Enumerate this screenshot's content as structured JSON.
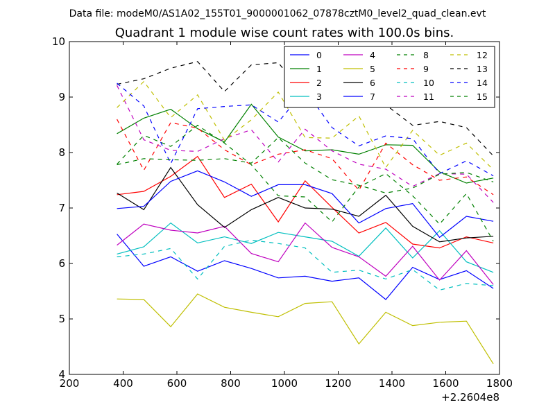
{
  "figure": {
    "suptitle": "Data file: modeM0/AS1A02_155T01_9000001062_07878cztM0_level2_quad_clean.evt",
    "title": "Quadrant 1 module wise count rates with 100.0s bins.",
    "x_offset_label": "+2.2604e8"
  },
  "chart_data": {
    "type": "line",
    "title": "Quadrant 1 module wise count rates with 100.0s bins.",
    "xlabel": "",
    "ylabel": "",
    "x_offset": "+2.2604e8",
    "xlim": [
      200,
      1800
    ],
    "ylim": [
      4,
      10
    ],
    "xticks": [
      200,
      400,
      600,
      800,
      1000,
      1200,
      1400,
      1600,
      1800
    ],
    "yticks": [
      4,
      5,
      6,
      7,
      8,
      9,
      10
    ],
    "xtick_labels": [
      "200",
      "400",
      "600",
      "800",
      "1000",
      "1200",
      "1400",
      "1600",
      "1800"
    ],
    "ytick_labels": [
      "4",
      "5",
      "6",
      "7",
      "8",
      "9",
      "10"
    ],
    "grid": false,
    "legend_position": "top-right",
    "x": [
      377,
      477,
      577,
      677,
      777,
      877,
      977,
      1077,
      1177,
      1277,
      1377,
      1477,
      1577,
      1677,
      1777
    ],
    "series": [
      {
        "name": "0",
        "color": "#0000ff",
        "dash": "solid",
        "values": [
          6.53,
          5.95,
          6.12,
          5.86,
          6.05,
          5.91,
          5.74,
          5.77,
          5.68,
          5.74,
          5.35,
          5.93,
          5.71,
          5.87,
          5.55
        ]
      },
      {
        "name": "1",
        "color": "#008000",
        "dash": "solid",
        "values": [
          8.34,
          8.62,
          8.78,
          8.43,
          8.19,
          8.87,
          8.28,
          8.03,
          8.05,
          7.97,
          8.14,
          8.13,
          7.65,
          7.45,
          7.54
        ]
      },
      {
        "name": "2",
        "color": "#ff0000",
        "dash": "solid",
        "values": [
          7.24,
          7.3,
          7.57,
          7.93,
          7.19,
          7.43,
          6.75,
          7.49,
          7.01,
          6.55,
          6.74,
          6.35,
          6.28,
          6.48,
          6.37
        ]
      },
      {
        "name": "3",
        "color": "#00bfbf",
        "dash": "solid",
        "values": [
          6.17,
          6.3,
          6.73,
          6.37,
          6.48,
          6.36,
          6.56,
          6.48,
          6.4,
          6.13,
          6.64,
          6.1,
          6.59,
          6.03,
          5.84
        ]
      },
      {
        "name": "4",
        "color": "#bf00bf",
        "dash": "solid",
        "values": [
          6.33,
          6.71,
          6.6,
          6.55,
          6.67,
          6.18,
          6.03,
          6.73,
          6.29,
          6.12,
          5.77,
          6.31,
          5.7,
          6.23,
          5.62
        ]
      },
      {
        "name": "5",
        "color": "#bfbf00",
        "dash": "solid",
        "values": [
          5.36,
          5.35,
          4.86,
          5.45,
          5.21,
          5.12,
          5.04,
          5.28,
          5.31,
          4.55,
          5.12,
          4.88,
          4.94,
          4.96,
          4.19
        ]
      },
      {
        "name": "6",
        "color": "#000000",
        "dash": "solid",
        "values": [
          7.27,
          6.97,
          7.73,
          7.06,
          6.65,
          6.97,
          7.19,
          7.0,
          6.98,
          6.85,
          7.23,
          6.67,
          6.39,
          6.46,
          6.49
        ]
      },
      {
        "name": "7",
        "color": "#0000ff",
        "dash": "solid",
        "values": [
          6.99,
          7.03,
          7.48,
          7.67,
          7.47,
          7.21,
          7.42,
          7.42,
          7.26,
          6.73,
          6.99,
          7.08,
          6.47,
          6.85,
          6.76
        ]
      },
      {
        "name": "8",
        "color": "#008000",
        "dash": "dashed",
        "values": [
          7.79,
          8.31,
          8.11,
          8.49,
          8.17,
          7.78,
          7.22,
          7.2,
          6.75,
          7.38,
          7.62,
          7.22,
          6.71,
          7.26,
          6.4
        ]
      },
      {
        "name": "9",
        "color": "#ff0000",
        "dash": "dashed",
        "values": [
          8.6,
          7.68,
          8.54,
          8.44,
          8.05,
          7.78,
          7.97,
          8.05,
          7.89,
          7.32,
          8.17,
          7.78,
          7.5,
          7.56,
          7.24
        ]
      },
      {
        "name": "10",
        "color": "#00bfbf",
        "dash": "dashed",
        "values": [
          6.12,
          6.17,
          6.27,
          5.72,
          6.31,
          6.42,
          6.36,
          6.28,
          5.84,
          5.88,
          5.72,
          5.89,
          5.52,
          5.64,
          5.6
        ]
      },
      {
        "name": "11",
        "color": "#bf00bf",
        "dash": "dashed",
        "values": [
          9.21,
          8.23,
          8.04,
          8.02,
          8.25,
          8.41,
          7.83,
          8.42,
          8.03,
          7.79,
          7.7,
          7.39,
          7.62,
          7.61,
          7.1
        ]
      },
      {
        "name": "12",
        "color": "#bfbf00",
        "dash": "dashed",
        "values": [
          8.81,
          9.28,
          8.63,
          9.04,
          8.22,
          8.59,
          9.09,
          8.27,
          8.26,
          8.66,
          7.73,
          8.4,
          7.95,
          8.17,
          7.69
        ]
      },
      {
        "name": "13",
        "color": "#000000",
        "dash": "dashed",
        "values": [
          9.23,
          9.33,
          9.52,
          9.64,
          9.1,
          9.58,
          9.62,
          9.03,
          9.35,
          8.89,
          8.86,
          8.49,
          8.56,
          8.45,
          7.94
        ]
      },
      {
        "name": "14",
        "color": "#0000ff",
        "dash": "dashed",
        "values": [
          9.25,
          8.84,
          7.8,
          8.79,
          8.83,
          8.86,
          8.55,
          9.13,
          8.45,
          8.12,
          8.3,
          8.25,
          7.62,
          7.85,
          7.58
        ]
      },
      {
        "name": "15",
        "color": "#008000",
        "dash": "dashed",
        "values": [
          7.78,
          7.89,
          7.87,
          7.86,
          7.89,
          7.81,
          8.27,
          7.81,
          7.51,
          7.41,
          7.27,
          7.36,
          7.61,
          7.64,
          7.47
        ]
      }
    ]
  }
}
